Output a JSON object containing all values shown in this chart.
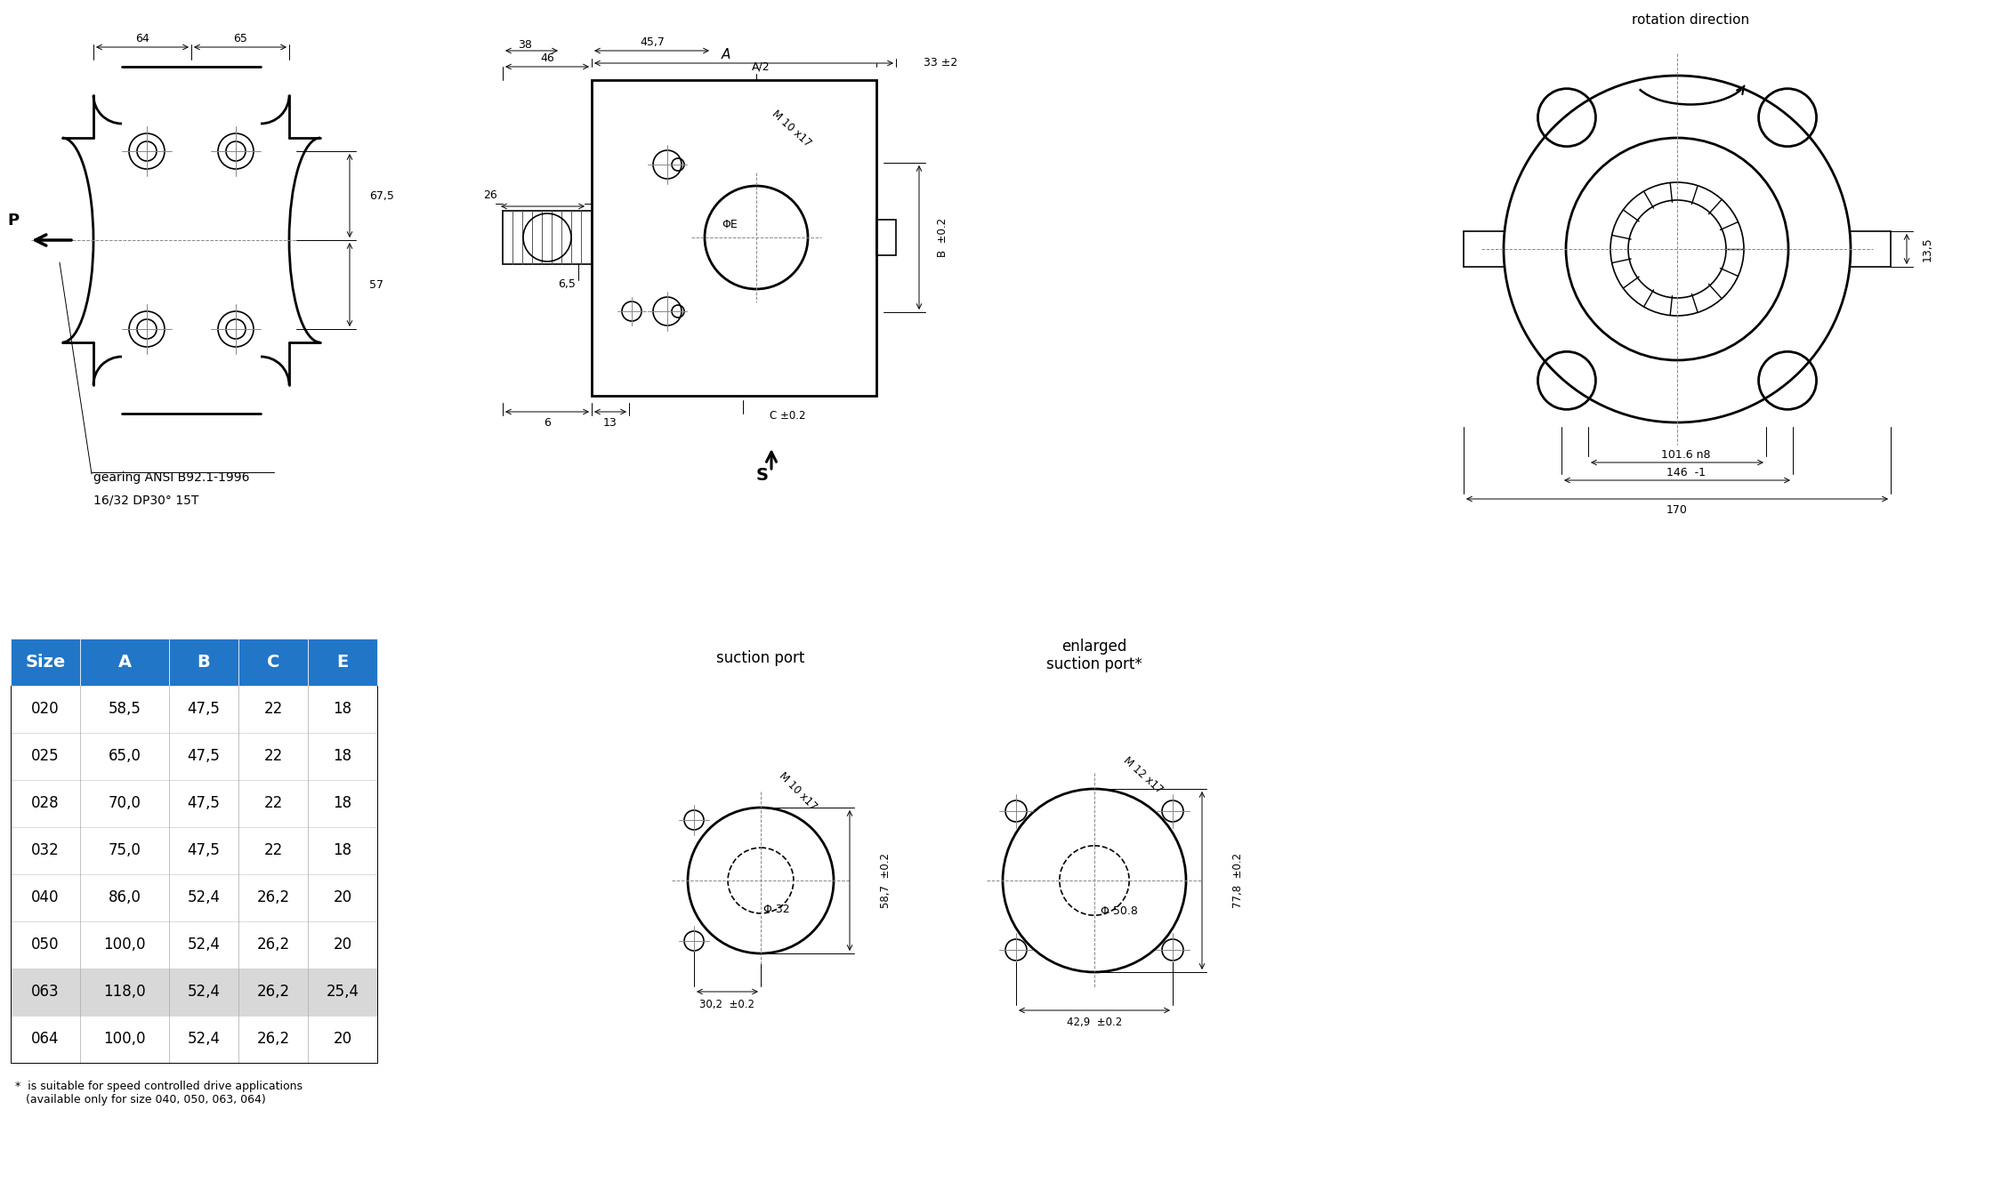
{
  "bg_color": "#ffffff",
  "line_color": "#000000",
  "table_header_bg": "#2176C8",
  "table_header_fg": "#ffffff",
  "table_row_highlight_bg": "#d8d8d8",
  "table_row_normal_bg": "#ffffff",
  "table_col_headers": [
    "Size",
    "A",
    "B",
    "C",
    "E"
  ],
  "table_rows": [
    [
      "020",
      "58,5",
      "47,5",
      "22",
      "18"
    ],
    [
      "025",
      "65,0",
      "47,5",
      "22",
      "18"
    ],
    [
      "028",
      "70,0",
      "47,5",
      "22",
      "18"
    ],
    [
      "032",
      "75,0",
      "47,5",
      "22",
      "18"
    ],
    [
      "040",
      "86,0",
      "52,4",
      "26,2",
      "20"
    ],
    [
      "050",
      "100,0",
      "52,4",
      "26,2",
      "20"
    ],
    [
      "063",
      "118,0",
      "52,4",
      "26,2",
      "25,4"
    ],
    [
      "064",
      "100,0",
      "52,4",
      "26,2",
      "20"
    ]
  ],
  "highlighted_row": 6,
  "footnote": "*  is suitable for speed controlled drive applications\n   (available only for size 040, 050, 063, 064)",
  "gearing_text1": "gearing ANSI B92.1-1996",
  "gearing_text2": "16/32 DP30° 15T",
  "rotation_direction_text": "rotation direction",
  "suction_port_text": "suction port",
  "enlarged_suction_port_text": "enlarged\nsuction port*"
}
